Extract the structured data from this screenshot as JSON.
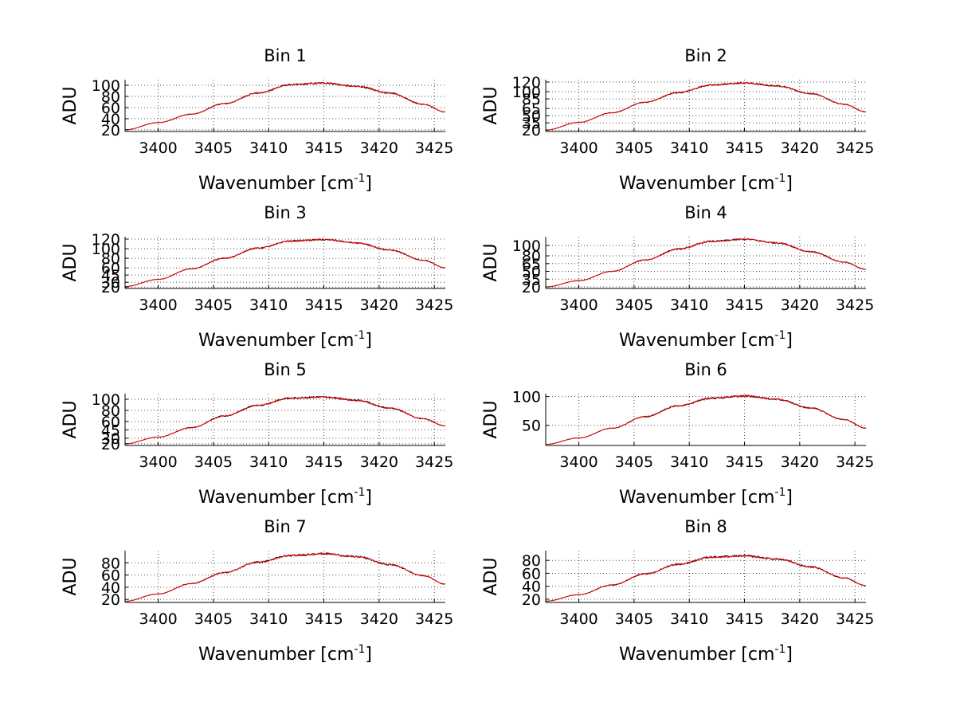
{
  "chart_data": [
    {
      "type": "line",
      "title": "Bin 1",
      "xlabel": "Wavenumber [cm",
      "xlabel_sup": "-1",
      "xlabel_close": "]",
      "ylabel": "ADU",
      "xlim": [
        3397,
        3426
      ],
      "ylim": [
        17,
        110
      ],
      "xticks": [
        3400,
        3405,
        3410,
        3415,
        3420,
        3425
      ],
      "yticks": [
        20,
        40,
        60,
        80,
        100
      ],
      "series": [
        {
          "color": "#000000",
          "x": [
            3397,
            3400,
            3403,
            3406,
            3409,
            3412,
            3415,
            3418,
            3421,
            3424,
            3426
          ],
          "y": [
            20,
            33,
            48,
            67,
            86,
            101,
            104,
            98,
            86,
            66,
            52
          ]
        },
        {
          "color": "#ff0000",
          "x": [
            3397,
            3400,
            3403,
            3406,
            3409,
            3412,
            3415,
            3418,
            3421,
            3424,
            3426
          ],
          "y": [
            20,
            33,
            48,
            67,
            86,
            101,
            104,
            98,
            86,
            66,
            52
          ]
        }
      ]
    },
    {
      "type": "line",
      "title": "Bin 2",
      "xlabel": "Wavenumber [cm",
      "xlabel_sup": "-1",
      "xlabel_close": "]",
      "ylabel": "ADU",
      "xlim": [
        3397,
        3426
      ],
      "ylim": [
        17,
        125
      ],
      "xticks": [
        3400,
        3405,
        3410,
        3415,
        3420,
        3425
      ],
      "yticks": [
        20,
        35,
        50,
        65,
        85,
        100,
        120
      ],
      "series": [
        {
          "color": "#000000",
          "x": [
            3397,
            3400,
            3403,
            3406,
            3409,
            3412,
            3415,
            3418,
            3421,
            3424,
            3426
          ],
          "y": [
            20,
            36,
            56,
            78,
            98,
            114,
            118,
            112,
            96,
            74,
            58
          ]
        },
        {
          "color": "#ff0000",
          "x": [
            3397,
            3400,
            3403,
            3406,
            3409,
            3412,
            3415,
            3418,
            3421,
            3424,
            3426
          ],
          "y": [
            20,
            36,
            56,
            78,
            98,
            114,
            118,
            112,
            96,
            74,
            58
          ]
        }
      ]
    },
    {
      "type": "line",
      "title": "Bin 3",
      "xlabel": "Wavenumber [cm",
      "xlabel_sup": "-1",
      "xlabel_close": "]",
      "ylabel": "ADU",
      "xlim": [
        3397,
        3426
      ],
      "ylim": [
        17,
        125
      ],
      "xticks": [
        3400,
        3405,
        3410,
        3415,
        3420,
        3425
      ],
      "yticks": [
        20,
        30,
        45,
        60,
        80,
        100,
        120
      ],
      "series": [
        {
          "color": "#000000",
          "x": [
            3397,
            3400,
            3403,
            3406,
            3409,
            3412,
            3415,
            3418,
            3421,
            3424,
            3426
          ],
          "y": [
            21,
            36,
            58,
            80,
            101,
            116,
            119,
            112,
            97,
            76,
            60
          ]
        },
        {
          "color": "#ff0000",
          "x": [
            3397,
            3400,
            3403,
            3406,
            3409,
            3412,
            3415,
            3418,
            3421,
            3424,
            3426
          ],
          "y": [
            21,
            36,
            58,
            80,
            101,
            116,
            119,
            112,
            97,
            76,
            60
          ]
        }
      ]
    },
    {
      "type": "line",
      "title": "Bin 4",
      "xlabel": "Wavenumber [cm",
      "xlabel_sup": "-1",
      "xlabel_close": "]",
      "ylabel": "ADU",
      "xlim": [
        3397,
        3426
      ],
      "ylim": [
        17,
        117
      ],
      "xticks": [
        3400,
        3405,
        3410,
        3415,
        3420,
        3425
      ],
      "yticks": [
        20,
        35,
        50,
        65,
        80,
        100
      ],
      "series": [
        {
          "color": "#000000",
          "x": [
            3397,
            3400,
            3403,
            3406,
            3409,
            3412,
            3415,
            3418,
            3421,
            3424,
            3426
          ],
          "y": [
            20,
            32,
            50,
            72,
            93,
            108,
            112,
            105,
            88,
            68,
            54
          ]
        },
        {
          "color": "#ff0000",
          "x": [
            3397,
            3400,
            3403,
            3406,
            3409,
            3412,
            3415,
            3418,
            3421,
            3424,
            3426
          ],
          "y": [
            20,
            32,
            50,
            72,
            93,
            108,
            112,
            105,
            88,
            68,
            54
          ]
        }
      ]
    },
    {
      "type": "line",
      "title": "Bin 5",
      "xlabel": "Wavenumber [cm",
      "xlabel_sup": "-1",
      "xlabel_close": "]",
      "ylabel": "ADU",
      "xlim": [
        3397,
        3426
      ],
      "ylim": [
        17,
        110
      ],
      "xticks": [
        3400,
        3405,
        3410,
        3415,
        3420,
        3425
      ],
      "yticks": [
        20,
        30,
        45,
        60,
        80,
        100
      ],
      "series": [
        {
          "color": "#000000",
          "x": [
            3397,
            3400,
            3403,
            3406,
            3409,
            3412,
            3415,
            3418,
            3421,
            3424,
            3426
          ],
          "y": [
            20,
            32,
            49,
            70,
            89,
            102,
            104,
            98,
            84,
            65,
            52
          ]
        },
        {
          "color": "#ff0000",
          "x": [
            3397,
            3400,
            3403,
            3406,
            3409,
            3412,
            3415,
            3418,
            3421,
            3424,
            3426
          ],
          "y": [
            20,
            32,
            49,
            70,
            89,
            102,
            104,
            98,
            84,
            65,
            52
          ]
        }
      ]
    },
    {
      "type": "line",
      "title": "Bin 6",
      "xlabel": "Wavenumber [cm",
      "xlabel_sup": "-1",
      "xlabel_close": "]",
      "ylabel": "ADU",
      "xlim": [
        3397,
        3426
      ],
      "ylim": [
        15,
        105
      ],
      "xticks": [
        3400,
        3405,
        3410,
        3415,
        3420,
        3425
      ],
      "yticks": [
        50,
        100
      ],
      "series": [
        {
          "color": "#000000",
          "x": [
            3397,
            3400,
            3403,
            3406,
            3409,
            3412,
            3415,
            3418,
            3421,
            3424,
            3426
          ],
          "y": [
            17,
            28,
            45,
            65,
            84,
            97,
            101,
            95,
            80,
            60,
            45
          ]
        },
        {
          "color": "#ff0000",
          "x": [
            3397,
            3400,
            3403,
            3406,
            3409,
            3412,
            3415,
            3418,
            3421,
            3424,
            3426
          ],
          "y": [
            17,
            28,
            45,
            65,
            84,
            97,
            101,
            95,
            80,
            60,
            45
          ]
        }
      ]
    },
    {
      "type": "line",
      "title": "Bin 7",
      "xlabel": "Wavenumber [cm",
      "xlabel_sup": "-1",
      "xlabel_close": "]",
      "ylabel": "ADU",
      "xlim": [
        3397,
        3426
      ],
      "ylim": [
        15,
        100
      ],
      "xticks": [
        3400,
        3405,
        3410,
        3415,
        3420,
        3425
      ],
      "yticks": [
        20,
        40,
        60,
        80
      ],
      "series": [
        {
          "color": "#000000",
          "x": [
            3397,
            3400,
            3403,
            3406,
            3409,
            3412,
            3415,
            3418,
            3421,
            3424,
            3426
          ],
          "y": [
            17,
            29,
            46,
            64,
            81,
            92,
            95,
            90,
            77,
            59,
            45
          ]
        },
        {
          "color": "#ff0000",
          "x": [
            3397,
            3400,
            3403,
            3406,
            3409,
            3412,
            3415,
            3418,
            3421,
            3424,
            3426
          ],
          "y": [
            17,
            29,
            46,
            64,
            81,
            92,
            95,
            90,
            77,
            59,
            45
          ]
        }
      ]
    },
    {
      "type": "line",
      "title": "Bin 8",
      "xlabel": "Wavenumber [cm",
      "xlabel_sup": "-1",
      "xlabel_close": "]",
      "ylabel": "ADU",
      "xlim": [
        3397,
        3426
      ],
      "ylim": [
        15,
        95
      ],
      "xticks": [
        3400,
        3405,
        3410,
        3415,
        3420,
        3425
      ],
      "yticks": [
        20,
        40,
        60,
        80
      ],
      "series": [
        {
          "color": "#000000",
          "x": [
            3397,
            3400,
            3403,
            3406,
            3409,
            3412,
            3415,
            3418,
            3421,
            3424,
            3426
          ],
          "y": [
            17,
            27,
            42,
            59,
            74,
            85,
            87,
            82,
            70,
            53,
            41
          ]
        },
        {
          "color": "#ff0000",
          "x": [
            3397,
            3400,
            3403,
            3406,
            3409,
            3412,
            3415,
            3418,
            3421,
            3424,
            3426
          ],
          "y": [
            17,
            27,
            42,
            59,
            74,
            85,
            87,
            82,
            70,
            53,
            41
          ]
        }
      ]
    }
  ]
}
